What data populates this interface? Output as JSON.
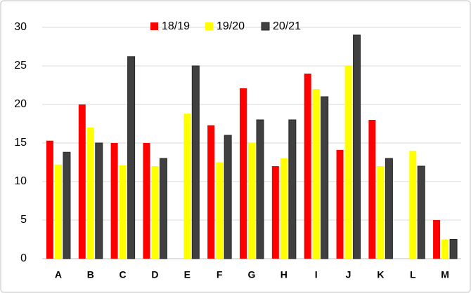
{
  "chart_data": {
    "type": "bar",
    "categories": [
      "A",
      "B",
      "C",
      "D",
      "E",
      "F",
      "G",
      "H",
      "I",
      "J",
      "K",
      "L",
      "M"
    ],
    "series": [
      {
        "name": "18/19",
        "color": "#ff0000",
        "values": [
          15.3,
          20,
          15,
          15,
          null,
          17.3,
          22.1,
          12,
          24,
          14.1,
          18,
          null,
          5
        ]
      },
      {
        "name": "19/20",
        "color": "#ffff00",
        "values": [
          12.2,
          17,
          12.1,
          12,
          18.8,
          12.5,
          15,
          13,
          22,
          25,
          12,
          14,
          2.5
        ]
      },
      {
        "name": "20/21",
        "color": "#404040",
        "values": [
          13.8,
          15,
          26.2,
          13,
          25,
          16,
          18,
          18,
          21,
          29,
          13,
          12,
          2.5
        ]
      }
    ],
    "ylim": [
      0,
      30
    ],
    "yticks": [
      0,
      5,
      10,
      15,
      20,
      25,
      30
    ],
    "grid": true,
    "legend": "top"
  }
}
